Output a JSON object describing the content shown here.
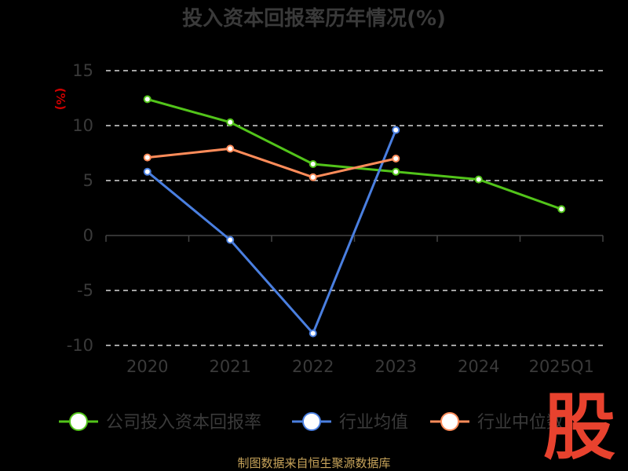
{
  "chart_data": {
    "type": "line",
    "title": "投入资本回报率历年情况(%)",
    "ylabel": "(%)",
    "categories": [
      "2020",
      "2021",
      "2022",
      "2023",
      "2024",
      "2025Q1"
    ],
    "ylim": [
      -10,
      15
    ],
    "yticks": [
      15,
      10,
      5,
      0,
      -5,
      -10
    ],
    "grid": true,
    "legend_position": "bottom",
    "series": [
      {
        "name": "公司投入资本回报率",
        "color": "#52c41a",
        "values": [
          12.4,
          10.3,
          6.5,
          5.8,
          5.1,
          2.4
        ]
      },
      {
        "name": "行业均值",
        "color": "#4a7fe0",
        "values": [
          5.8,
          -0.4,
          -8.9,
          9.6,
          null,
          null
        ]
      },
      {
        "name": "行业中位数",
        "color": "#ff8c5a",
        "values": [
          7.1,
          7.9,
          5.3,
          7.0,
          null,
          null
        ]
      }
    ]
  },
  "source": "制图数据来自恒生聚源数据库",
  "logo_text": "股"
}
